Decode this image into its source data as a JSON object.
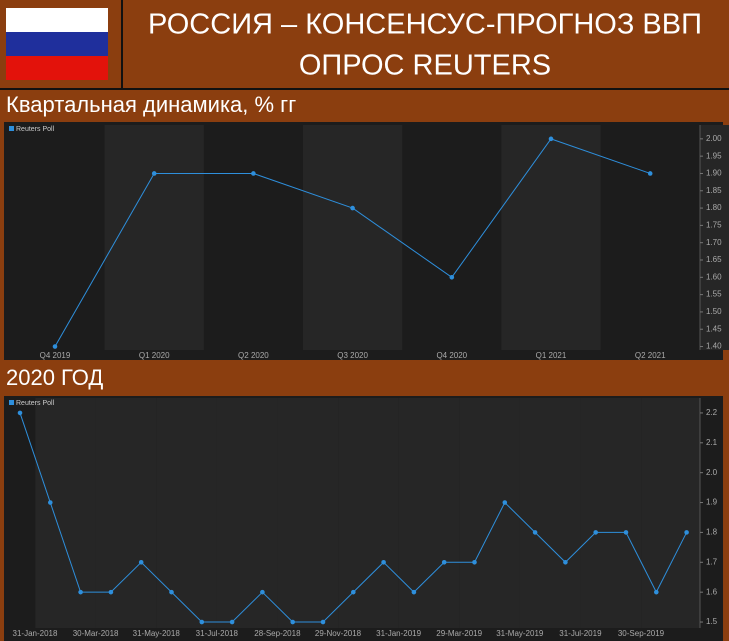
{
  "header": {
    "title": "РОССИЯ – КОНСЕНСУС-ПРОГНОЗ ВВП",
    "subtitle": "ОПРОС REUTERS"
  },
  "chart_data": [
    {
      "type": "line",
      "title": "Квартальная динамика, % гг",
      "categories": [
        "Q4 2019",
        "Q1 2020",
        "Q2 2020",
        "Q3 2020",
        "Q4 2020",
        "Q1 2021",
        "Q2 2021"
      ],
      "series": [
        {
          "name": "Reuters Poll",
          "color": "#2e8fdc",
          "values": [
            1.4,
            1.9,
            1.9,
            1.8,
            1.6,
            2.0,
            1.9
          ]
        }
      ],
      "ylim": [
        1.39,
        2.04
      ],
      "yticks": [
        {
          "value": 1.4,
          "label": "1.40"
        },
        {
          "value": 1.45,
          "label": "1.45"
        },
        {
          "value": 1.5,
          "label": "1.50"
        },
        {
          "value": 1.55,
          "label": "1.55"
        },
        {
          "value": 1.6,
          "label": "1.60"
        },
        {
          "value": 1.65,
          "label": "1.65"
        },
        {
          "value": 1.7,
          "label": "1.70"
        },
        {
          "value": 1.75,
          "label": "1.75"
        },
        {
          "value": 1.8,
          "label": "1.80"
        },
        {
          "value": 1.85,
          "label": "1.85"
        },
        {
          "value": 1.9,
          "label": "1.90"
        },
        {
          "value": 1.95,
          "label": "1.95"
        },
        {
          "value": 2.0,
          "label": "2.00"
        }
      ],
      "legend": "top-left"
    },
    {
      "type": "line",
      "title": "2020 ГОД",
      "categories": [
        "31-Jan-2018",
        null,
        "30-Mar-2018",
        null,
        "31-May-2018",
        null,
        "31-Jul-2018",
        null,
        "28-Sep-2018",
        null,
        "29-Nov-2018",
        null,
        "31-Jan-2019",
        null,
        "29-Mar-2019",
        null,
        "31-May-2019",
        null,
        "31-Jul-2019",
        null,
        "30-Sep-2019",
        null,
        null
      ],
      "series": [
        {
          "name": "Reuters Poll",
          "color": "#2e8fdc",
          "values": [
            2.2,
            1.9,
            1.6,
            1.6,
            1.7,
            1.6,
            1.5,
            1.5,
            1.6,
            1.5,
            1.5,
            1.6,
            1.7,
            1.6,
            1.7,
            1.7,
            1.9,
            1.8,
            1.7,
            1.8,
            1.8,
            1.6,
            1.8
          ]
        }
      ],
      "ylim": [
        1.48,
        2.25
      ],
      "yticks": [
        1.5,
        1.6,
        1.7,
        1.8,
        1.9,
        {
          "value": 2.0,
          "label": "2.0"
        },
        2.1,
        2.2
      ],
      "legend": "top-left"
    }
  ]
}
